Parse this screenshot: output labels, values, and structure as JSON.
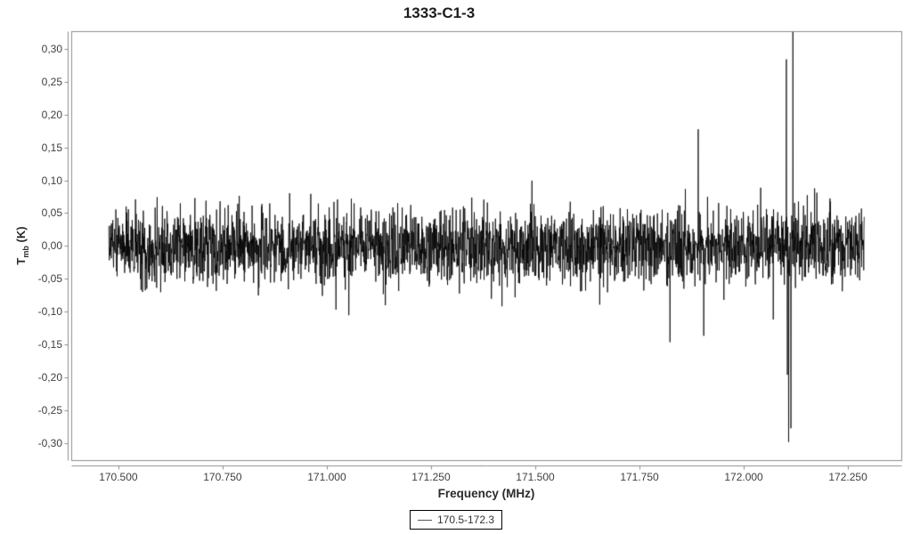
{
  "chart_data": {
    "type": "line",
    "title": "1333-C1-3",
    "xlabel": "Frequency (MHz)",
    "ylabel": "Tmb (K)",
    "ylabel_parts": {
      "main": "T",
      "sub": "mb",
      "rest": " (K)"
    },
    "xlim": [
      170.387,
      172.378
    ],
    "ylim": [
      -0.326,
      0.327
    ],
    "grid": false,
    "x_ticks": [
      {
        "v": 170.5,
        "label": "170.500"
      },
      {
        "v": 170.75,
        "label": "170.750"
      },
      {
        "v": 171.0,
        "label": "171.000"
      },
      {
        "v": 171.25,
        "label": "171.250"
      },
      {
        "v": 171.5,
        "label": "171.500"
      },
      {
        "v": 171.75,
        "label": "171.750"
      },
      {
        "v": 172.0,
        "label": "172.000"
      },
      {
        "v": 172.25,
        "label": "172.250"
      }
    ],
    "y_ticks": [
      {
        "v": 0.3,
        "label": "0,30"
      },
      {
        "v": 0.25,
        "label": "0,25"
      },
      {
        "v": 0.2,
        "label": "0,20"
      },
      {
        "v": 0.15,
        "label": "0,15"
      },
      {
        "v": 0.1,
        "label": "0,10"
      },
      {
        "v": 0.05,
        "label": "0,05"
      },
      {
        "v": 0.0,
        "label": "0,00"
      },
      {
        "v": -0.05,
        "label": "-0,05"
      },
      {
        "v": -0.1,
        "label": "-0,10"
      },
      {
        "v": -0.15,
        "label": "-0,15"
      },
      {
        "v": -0.2,
        "label": "-0,20"
      },
      {
        "v": -0.25,
        "label": "-0,25"
      },
      {
        "v": -0.3,
        "label": "-0,30"
      }
    ],
    "legend": {
      "position": "bottom",
      "entries": [
        {
          "label": "170.5-172.3",
          "color": "#555555"
        }
      ]
    },
    "axis_color": "#8c8c8c",
    "tick_label_color": "#3f3f3f",
    "series": [
      {
        "name": "170.5-172.3",
        "color": "#000000",
        "x_start": 170.477,
        "x_end": 172.289,
        "n_points": 3000,
        "baseline": 0.0,
        "noise_sigma": 0.028,
        "noise_seed": 1333,
        "spikes": [
          {
            "freq": 171.053,
            "amp": -0.11
          },
          {
            "freq": 171.823,
            "amp": -0.11
          },
          {
            "freq": 171.891,
            "amp": 0.221
          },
          {
            "freq": 171.904,
            "amp": -0.143
          },
          {
            "freq": 172.102,
            "amp": 0.253
          },
          {
            "freq": 172.105,
            "amp": -0.225
          },
          {
            "freq": 172.108,
            "amp": -0.295
          },
          {
            "freq": 172.113,
            "amp": -0.28
          },
          {
            "freq": 172.118,
            "amp": 0.292
          }
        ]
      }
    ]
  }
}
